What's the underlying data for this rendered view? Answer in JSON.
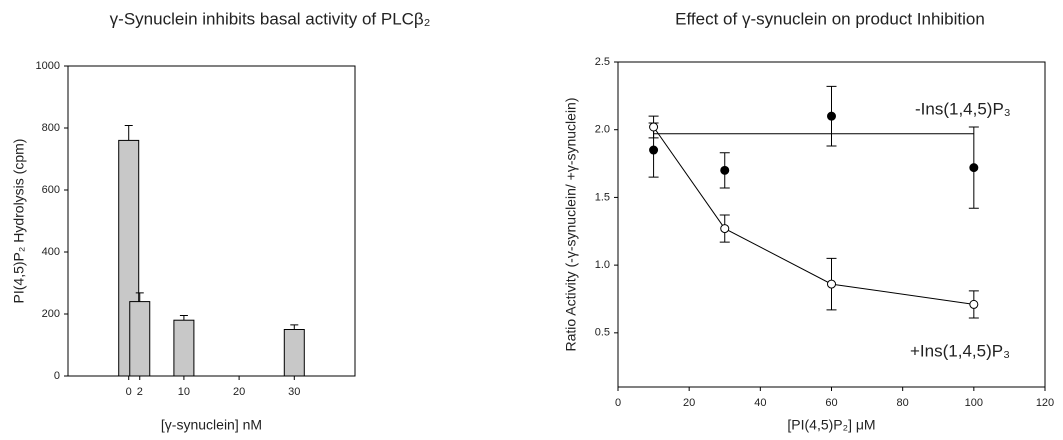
{
  "chart_data": [
    {
      "type": "bar",
      "title": "γ-Synuclein inhibits basal activity of PLCβ₂",
      "xlabel": "[γ-synuclein] nM",
      "ylabel": "PI(4,5)P₂ Hydrolysis (cpm)",
      "x": [
        0,
        2,
        10,
        30
      ],
      "values": [
        760,
        240,
        180,
        150
      ],
      "errors": [
        48,
        28,
        15,
        15
      ],
      "color": "#c8c8c8",
      "xlim": [
        -11,
        41
      ],
      "xticks": [
        0,
        2,
        10,
        20,
        30
      ],
      "ylim": [
        0,
        1000
      ],
      "yticks": [
        0,
        200,
        400,
        600,
        800,
        1000
      ]
    },
    {
      "type": "scatter",
      "title": "Effect of γ-synuclein on product Inhibition",
      "xlabel": "[PI(4,5)P₂] μM",
      "ylabel": "Ratio Activity (-γ-synuclein/ +γ-synuclein)",
      "x": [
        10,
        30,
        60,
        100
      ],
      "series": [
        {
          "name": "-Ins(1,4,5)P₃",
          "color": "#000000",
          "filled": true,
          "values": [
            1.85,
            1.7,
            2.1,
            1.72
          ],
          "errors": [
            0.2,
            0.13,
            0.22,
            0.3
          ],
          "fit": 1.97
        },
        {
          "name": "+Ins(1,4,5)P₃",
          "color": "#000000",
          "filled": false,
          "values": [
            2.02,
            1.27,
            0.86,
            0.71
          ],
          "errors": [
            0.08,
            0.1,
            0.19,
            0.1
          ]
        }
      ],
      "xlim": [
        0,
        120
      ],
      "xticks": [
        0,
        20,
        40,
        60,
        80,
        100,
        120
      ],
      "ylim": [
        0.1,
        2.5
      ],
      "yticks": [
        0.5,
        1.0,
        1.5,
        2.0,
        2.5
      ]
    }
  ]
}
